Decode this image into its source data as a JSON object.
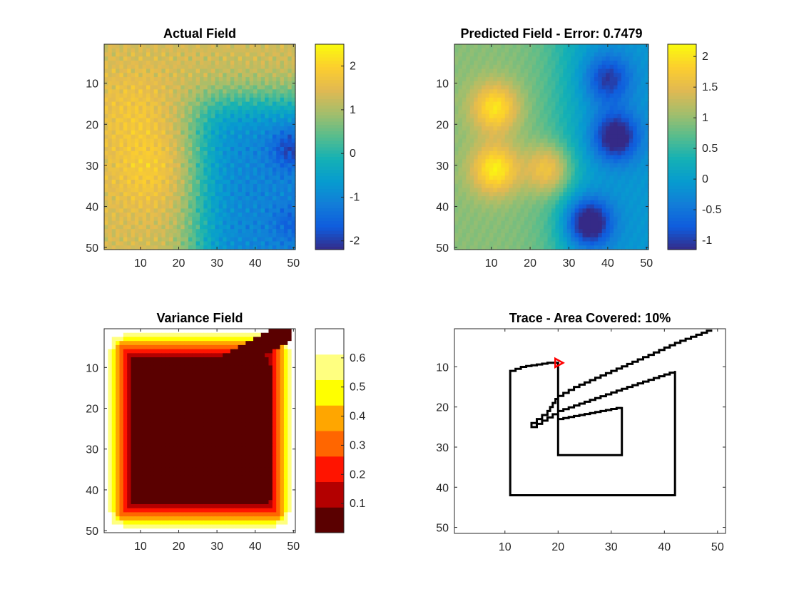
{
  "chart_data": [
    {
      "type": "heatmap",
      "title": "Actual Field",
      "colormap": "parula",
      "xlim": [
        0.5,
        50.5
      ],
      "ylim": [
        0.5,
        50.5
      ],
      "y_reversed": true,
      "xticks": [
        10,
        20,
        30,
        40,
        50
      ],
      "yticks": [
        10,
        20,
        30,
        40,
        50
      ],
      "clim": [
        -2.2,
        2.5
      ],
      "colorbar_ticks": [
        -2,
        -1,
        0,
        1,
        2
      ],
      "colorbar_tick_labels": [
        "-2",
        "-1",
        "0",
        "1",
        "2"
      ],
      "grid_size": [
        50,
        50
      ],
      "description_regions": [
        {
          "rows": [
            1,
            50
          ],
          "cols": [
            1,
            20
          ],
          "level": "high",
          "approx_value": 1.7
        },
        {
          "rows": [
            1,
            15
          ],
          "cols": [
            20,
            50
          ],
          "level": "mid",
          "approx_value": 0.3
        },
        {
          "rows": [
            15,
            50
          ],
          "cols": [
            30,
            50
          ],
          "level": "low",
          "approx_value": -1.0
        }
      ]
    },
    {
      "type": "heatmap",
      "title": "Predicted Field - Error: 0.7479",
      "colormap": "parula",
      "xlim": [
        0.5,
        50.5
      ],
      "ylim": [
        0.5,
        50.5
      ],
      "y_reversed": true,
      "xticks": [
        10,
        20,
        30,
        40,
        50
      ],
      "yticks": [
        10,
        20,
        30,
        40,
        50
      ],
      "clim": [
        -1.15,
        2.2
      ],
      "colorbar_ticks": [
        -1,
        -0.5,
        0,
        0.5,
        1,
        1.5,
        2
      ],
      "colorbar_tick_labels": [
        "-1",
        "-0.5",
        "0",
        "0.5",
        "1",
        "1.5",
        "2"
      ],
      "grid_size": [
        50,
        50
      ],
      "peaks": [
        {
          "x": 11,
          "y": 16,
          "value": 1.8
        },
        {
          "x": 11,
          "y": 31,
          "value": 1.9
        },
        {
          "x": 25,
          "y": 31,
          "value": 1.7
        },
        {
          "x": 42,
          "y": 23,
          "value": -0.9
        },
        {
          "x": 35,
          "y": 44,
          "value": -1.1
        },
        {
          "x": 40,
          "y": 9,
          "value": -0.5
        }
      ]
    },
    {
      "type": "heatmap",
      "title": "Variance Field",
      "colormap": "hot",
      "xlim": [
        0.5,
        50.5
      ],
      "ylim": [
        0.5,
        50.5
      ],
      "y_reversed": true,
      "xticks": [
        10,
        20,
        30,
        40,
        50
      ],
      "yticks": [
        10,
        20,
        30,
        40,
        50
      ],
      "clim": [
        0,
        0.7
      ],
      "colorbar_ticks": [
        0.1,
        0.2,
        0.3,
        0.4,
        0.5,
        0.6
      ],
      "colorbar_tick_labels": [
        "0.1",
        "0.2",
        "0.3",
        "0.4",
        "0.5",
        "0.6"
      ],
      "color_levels": [
        "#5a0000",
        "#b30000",
        "#ff1400",
        "#ff6600",
        "#ffa600",
        "#ffff00",
        "#ffff80",
        "#ffffff"
      ],
      "grid_size": [
        50,
        50
      ]
    },
    {
      "type": "line",
      "title": "Trace - Area Covered: 10%",
      "xlim": [
        0.5,
        51.5
      ],
      "ylim": [
        0.5,
        51.5
      ],
      "y_reversed": true,
      "xticks": [
        10,
        20,
        30,
        40,
        50
      ],
      "yticks": [
        10,
        20,
        30,
        40,
        50
      ],
      "grid": false,
      "series": [
        {
          "color": "#000000",
          "x": [
            49,
            43,
            38,
            31,
            24,
            20,
            18,
            16,
            15,
            20,
            33,
            42,
            42,
            11,
            11,
            13,
            18,
            20,
            20,
            32,
            32,
            20,
            20
          ],
          "y": [
            1,
            4,
            7,
            11,
            15,
            18,
            22,
            24,
            25,
            21,
            15,
            11,
            42,
            42,
            11,
            10,
            9,
            9,
            23,
            20,
            32,
            32,
            23
          ]
        }
      ],
      "marker": {
        "x": 20,
        "y": 9,
        "shape": "triangle-right",
        "color": "#ff0000"
      }
    }
  ]
}
